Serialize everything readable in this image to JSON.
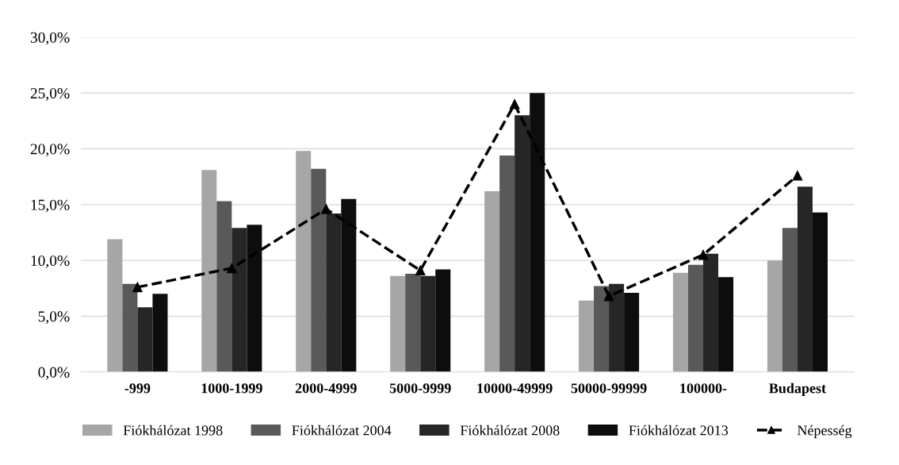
{
  "chart_data": {
    "type": "bar",
    "categories": [
      "-999",
      "1000-1999",
      "2000-4999",
      "5000-9999",
      "10000-49999",
      "50000-99999",
      "100000-",
      "Budapest"
    ],
    "series": [
      {
        "name": "Fiókhálózat 1998",
        "color": "#a6a6a6",
        "values": [
          11.9,
          18.1,
          19.8,
          8.6,
          16.2,
          6.4,
          8.9,
          10.0
        ]
      },
      {
        "name": "Fiókhálózat 2004",
        "color": "#595959",
        "values": [
          7.9,
          15.3,
          18.2,
          8.8,
          19.4,
          7.7,
          9.6,
          12.9
        ]
      },
      {
        "name": "Fiókhálózat 2008",
        "color": "#262626",
        "values": [
          5.8,
          12.9,
          14.2,
          8.6,
          23.0,
          7.9,
          10.6,
          16.6
        ]
      },
      {
        "name": "Fiókhálózat 2013",
        "color": "#0d0d0d",
        "values": [
          7.0,
          13.2,
          15.5,
          9.2,
          25.0,
          7.1,
          8.5,
          14.3
        ]
      },
      {
        "name": "Népesség",
        "type": "line",
        "color": "#000000",
        "marker": "triangle",
        "line_style": "dashed",
        "values": [
          7.6,
          9.3,
          14.6,
          9.1,
          24.0,
          6.8,
          10.5,
          17.6
        ]
      }
    ],
    "ylim": [
      0,
      30
    ],
    "yticks": [
      {
        "value": 0,
        "label": "0,0%"
      },
      {
        "value": 5,
        "label": "5,0%"
      },
      {
        "value": 10,
        "label": "10,0%"
      },
      {
        "value": 15,
        "label": "15,0%"
      },
      {
        "value": 20,
        "label": "20,0%"
      },
      {
        "value": 25,
        "label": "25,0%"
      },
      {
        "value": 30,
        "label": "30,0%"
      }
    ],
    "grid": "y",
    "legend": "bottom"
  }
}
